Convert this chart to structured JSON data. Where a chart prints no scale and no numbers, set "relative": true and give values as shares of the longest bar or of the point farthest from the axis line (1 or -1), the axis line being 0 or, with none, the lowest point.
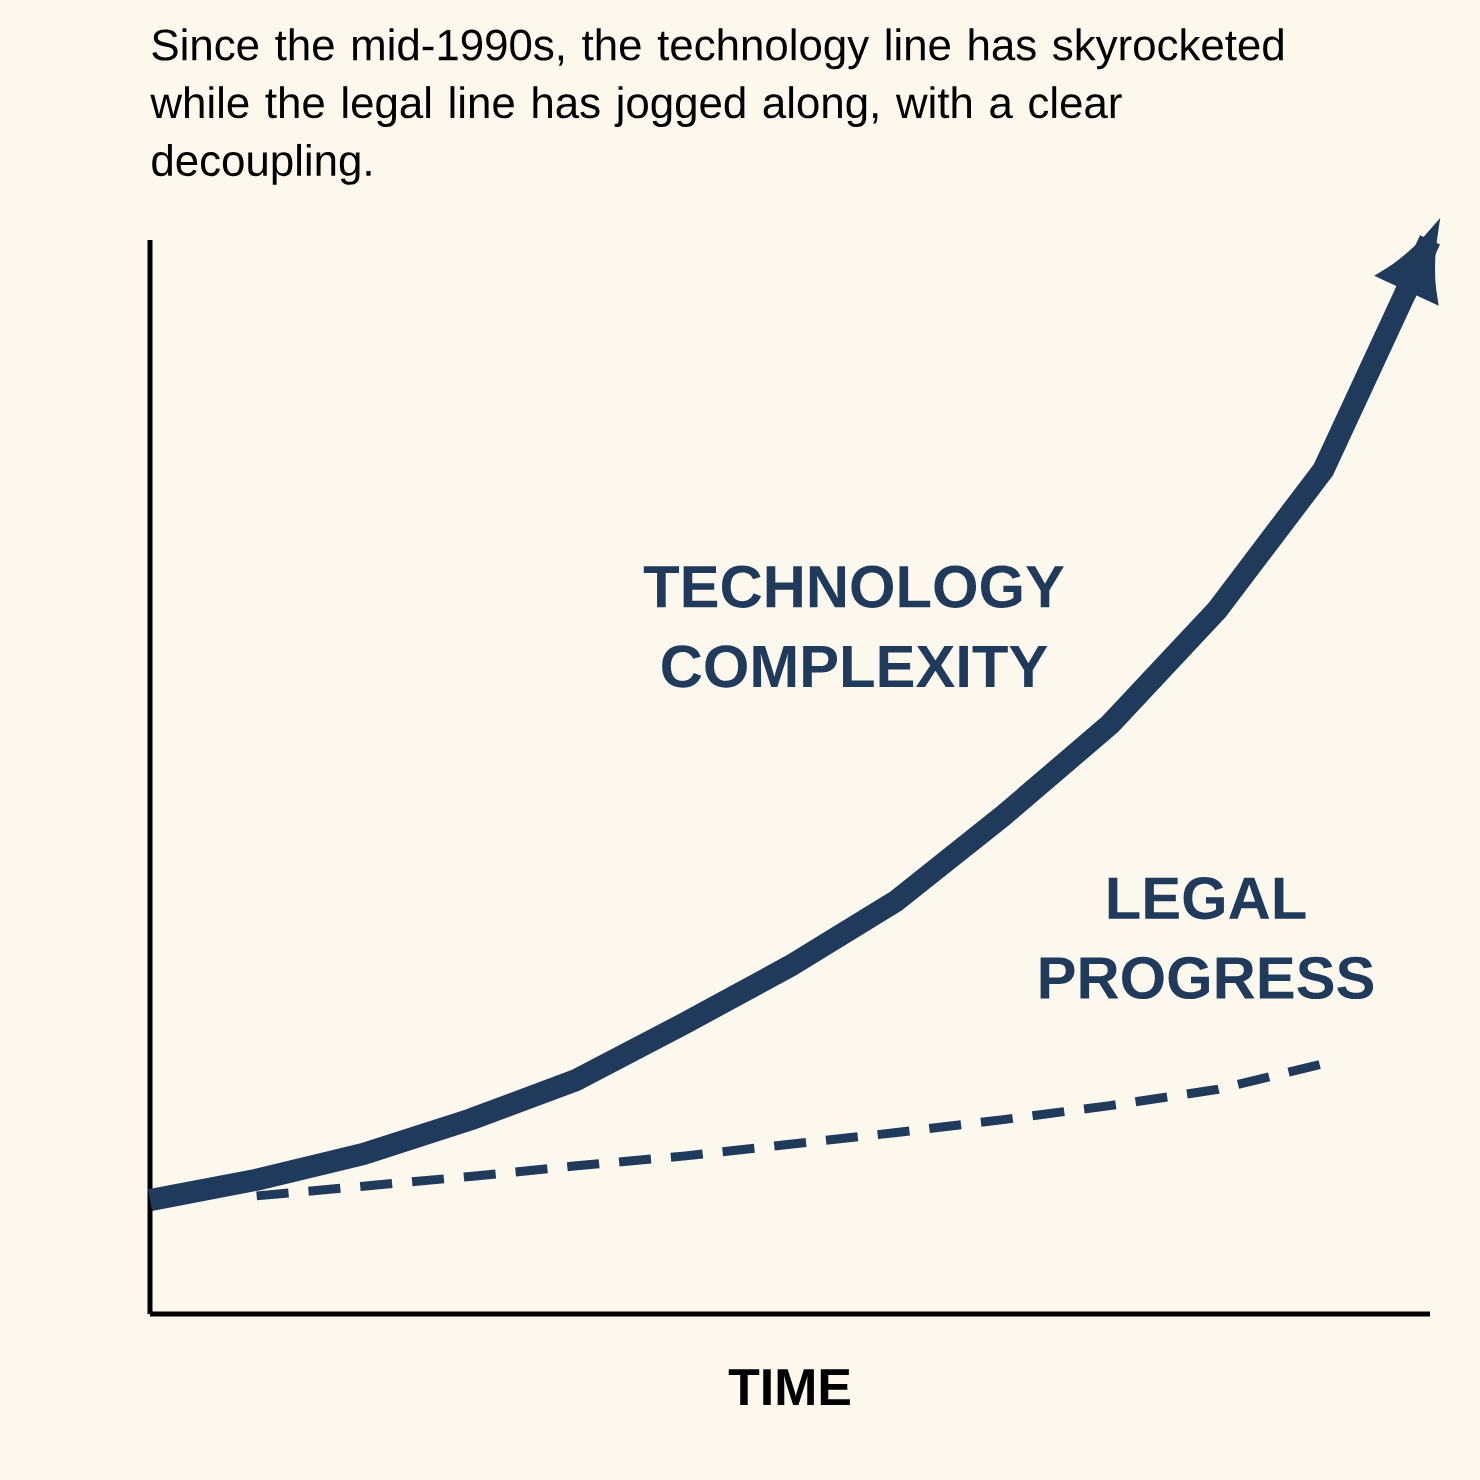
{
  "chart_data": {
    "type": "line",
    "title": "Since the mid-1990s, the technology line has skyrocketed while the legal line has jogged along, with a clear decoupling.",
    "xlabel": "TIME",
    "relative": true,
    "marker": "none",
    "categories": [
      null,
      null,
      null,
      null,
      null,
      null,
      null,
      null,
      null,
      null,
      null,
      null,
      null
    ],
    "series": [
      {
        "name": "TECHNOLOGY COMPLEXITY",
        "color": "#1f3a5a",
        "line_style": "solid",
        "values": [
          0.106,
          0.125,
          0.149,
          0.181,
          0.218,
          0.27,
          0.324,
          0.385,
          0.464,
          0.549,
          0.655,
          0.786,
          1
        ]
      },
      {
        "name": "LEGAL PROGRESS",
        "color": "#1f3a5a",
        "line_style": "dashed",
        "values": [
          null,
          0.11,
          0.119,
          0.128,
          0.138,
          0.147,
          0.158,
          0.169,
          0.181,
          0.194,
          0.209,
          0.233,
          null
        ]
      }
    ]
  }
}
